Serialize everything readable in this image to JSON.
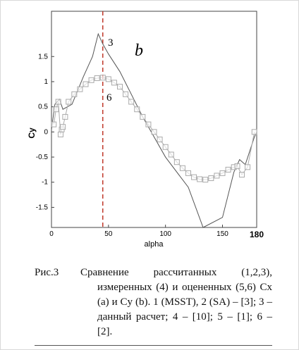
{
  "chart_data": {
    "type": "line",
    "panel_label": "b",
    "x_label": "alpha",
    "y_label": "Cy",
    "xlim": [
      0,
      180
    ],
    "ylim": [
      -1.9,
      2.4
    ],
    "xticks": [
      0,
      50,
      100,
      150,
      180
    ],
    "yticks": [
      -1.5,
      -1,
      -0.5,
      0,
      0.5,
      1,
      1.5
    ],
    "reference_line_x": 45,
    "reference_color": "#c0392b",
    "series": [
      {
        "name": "3",
        "color": "#555555",
        "marker": "none",
        "x": [
          0,
          3,
          7,
          10,
          18,
          28,
          36,
          41,
          45,
          50,
          60,
          80,
          100,
          120,
          133,
          150,
          160,
          165,
          170,
          178,
          180
        ],
        "values": [
          0.05,
          0.55,
          0.65,
          0.45,
          0.55,
          1.1,
          1.5,
          1.95,
          1.75,
          1.55,
          1.2,
          0.3,
          -0.5,
          -1.1,
          -1.9,
          -1.7,
          -0.8,
          -0.55,
          -0.65,
          -0.1,
          0.0
        ]
      },
      {
        "name": "6",
        "color": "#aaaaaa",
        "marker": "square",
        "x": [
          2,
          4,
          6,
          8,
          9,
          10,
          12,
          15,
          20,
          25,
          30,
          35,
          40,
          45,
          50,
          55,
          60,
          65,
          70,
          75,
          80,
          85,
          90,
          95,
          100,
          105,
          110,
          115,
          120,
          125,
          130,
          135,
          140,
          145,
          150,
          155,
          160,
          163,
          167,
          172,
          178
        ],
        "values": [
          0.15,
          0.45,
          0.6,
          -0.05,
          0.05,
          0.1,
          0.3,
          0.6,
          0.75,
          0.85,
          0.95,
          1.03,
          1.07,
          1.08,
          1.05,
          0.98,
          0.9,
          0.75,
          0.6,
          0.45,
          0.3,
          0.15,
          0.0,
          -0.15,
          -0.3,
          -0.45,
          -0.6,
          -0.72,
          -0.82,
          -0.9,
          -0.94,
          -0.95,
          -0.92,
          -0.87,
          -0.82,
          -0.75,
          -0.7,
          -0.68,
          -0.85,
          -0.7,
          0.0
        ]
      }
    ]
  },
  "caption": {
    "label": "Рис.3",
    "text": "Сравнение рассчитанных (1,2,3), измеренных (4) и оцененных (5,6) Cx (a) и Cy (b). 1 (MSST), 2 (SA) – [3]; 3 – данный расчет; 4 – [10]; 5 – [1]; 6 – [2]."
  }
}
